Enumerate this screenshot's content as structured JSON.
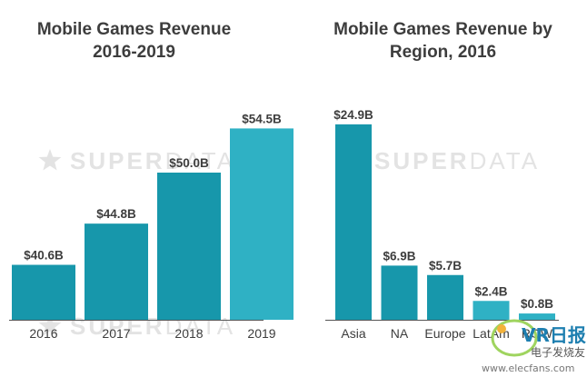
{
  "chart_data": [
    {
      "type": "bar",
      "title_lines": [
        "Mobile Games Revenue",
        "2016-2019"
      ],
      "categories": [
        "2016",
        "2017",
        "2018",
        "2019"
      ],
      "values": [
        40.6,
        44.8,
        50.0,
        54.5
      ],
      "value_labels": [
        "$40.6B",
        "$44.8B",
        "$50.0B",
        "$54.5B"
      ],
      "unit": "B",
      "ylim": [
        35,
        55
      ],
      "grid": false,
      "colors": [
        "#1797ab",
        "#1797ab",
        "#1797ab",
        "#2fb1c4"
      ]
    },
    {
      "type": "bar",
      "title_lines": [
        "Mobile Games Revenue by",
        "Region, 2016"
      ],
      "categories": [
        "Asia",
        "NA",
        "Europe",
        "LatAm",
        "ROW"
      ],
      "values": [
        24.9,
        6.9,
        5.7,
        2.4,
        0.8
      ],
      "value_labels": [
        "$24.9B",
        "$6.9B",
        "$5.7B",
        "$2.4B",
        "$0.8B"
      ],
      "unit": "B",
      "ylim": [
        0,
        25
      ],
      "grid": false,
      "colors": [
        "#1797ab",
        "#1797ab",
        "#1797ab",
        "#2fb1c4",
        "#2fb1c4"
      ]
    }
  ],
  "watermark": {
    "prefix": "SUPER",
    "suffix": "DATA",
    "icon": "star-icon",
    "color": "#e3e3e3"
  },
  "brand_badge": {
    "logo_text": "VR日报",
    "subtitle": "电子发烧友",
    "url": "www.elecfans.com",
    "icon": "vr-logo-icon"
  },
  "colors": {
    "bar": "#1797ab",
    "bar_light": "#2fb1c4",
    "axis": "#555555",
    "text": "#3d3d3d"
  }
}
